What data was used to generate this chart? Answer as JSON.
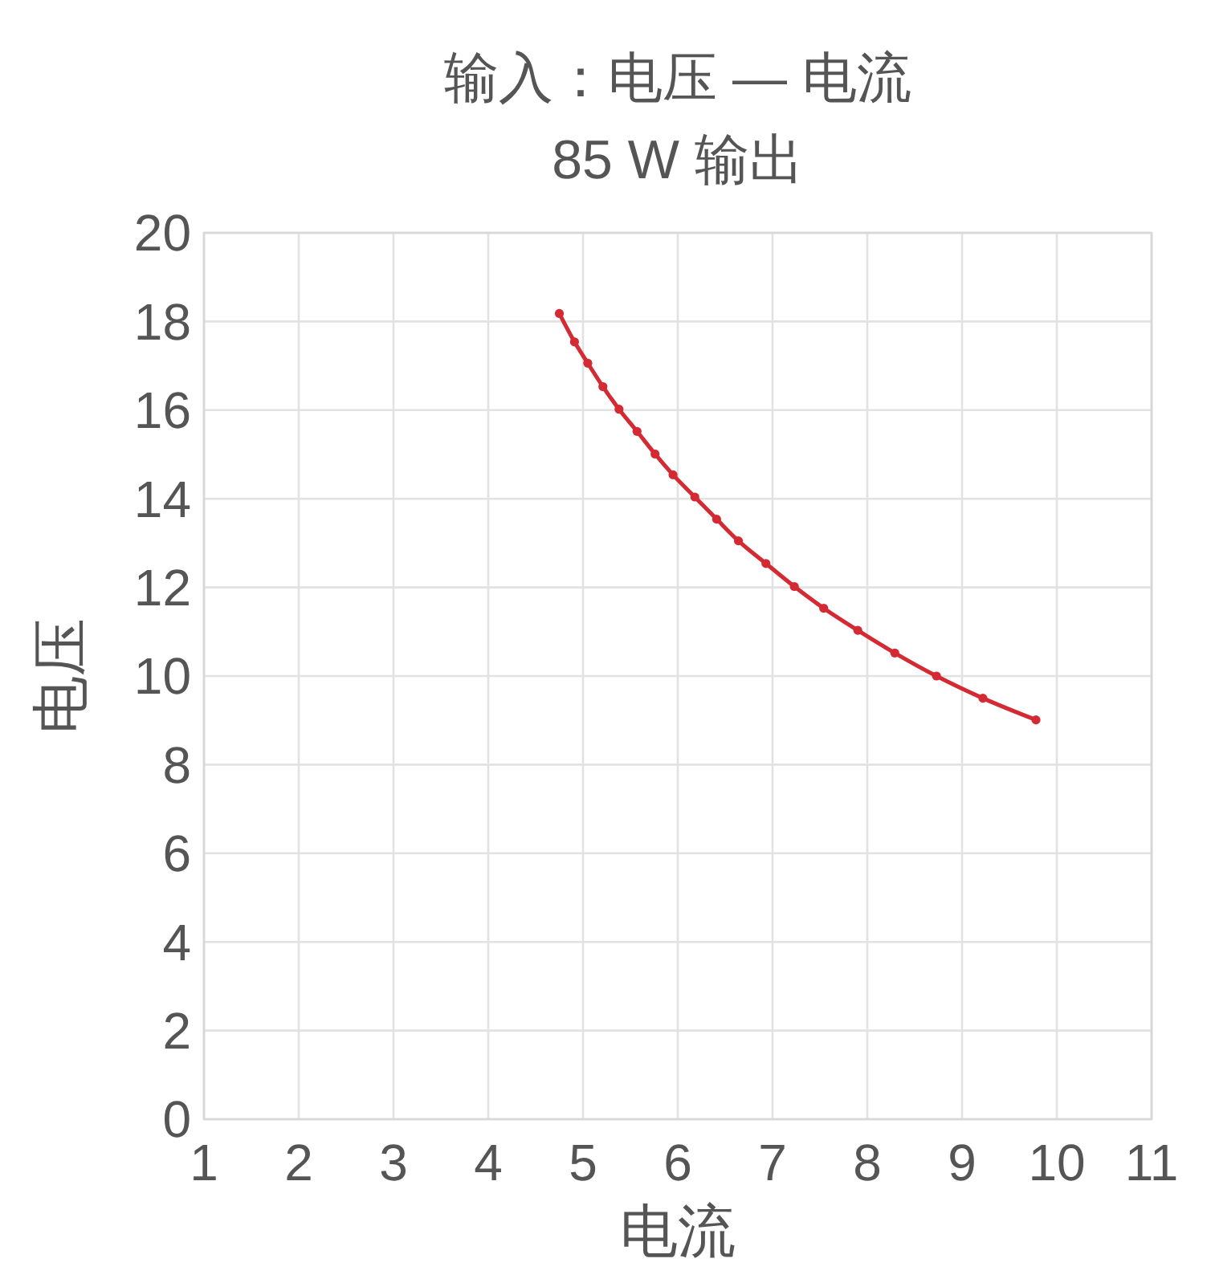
{
  "chart_data": {
    "type": "line",
    "title": "输入：电压 — 电流",
    "subtitle": "85 W 输出",
    "xlabel": "电流",
    "ylabel": "电压",
    "series": [
      {
        "color": "#d42a33",
        "x": [
          4.75,
          4.91,
          5.05,
          5.21,
          5.38,
          5.57,
          5.76,
          5.95,
          6.18,
          6.41,
          6.64,
          6.93,
          7.23,
          7.54,
          7.9,
          8.29,
          8.73,
          9.22,
          9.78
        ],
        "values": [
          18.18,
          17.54,
          17.06,
          16.53,
          16.02,
          15.52,
          15.01,
          14.54,
          14.04,
          13.54,
          13.05,
          12.54,
          12.02,
          11.53,
          11.03,
          10.52,
          10.0,
          9.5,
          9.01
        ]
      }
    ],
    "xlim": [
      1,
      11
    ],
    "xticks": [
      1,
      2,
      3,
      4,
      5,
      6,
      7,
      8,
      9,
      10,
      11
    ],
    "ylim": [
      0,
      20
    ],
    "yticks": [
      0,
      2,
      4,
      6,
      8,
      10,
      12,
      14,
      16,
      18,
      20
    ],
    "grid": true,
    "marker": "circle",
    "line_style": "solid"
  }
}
